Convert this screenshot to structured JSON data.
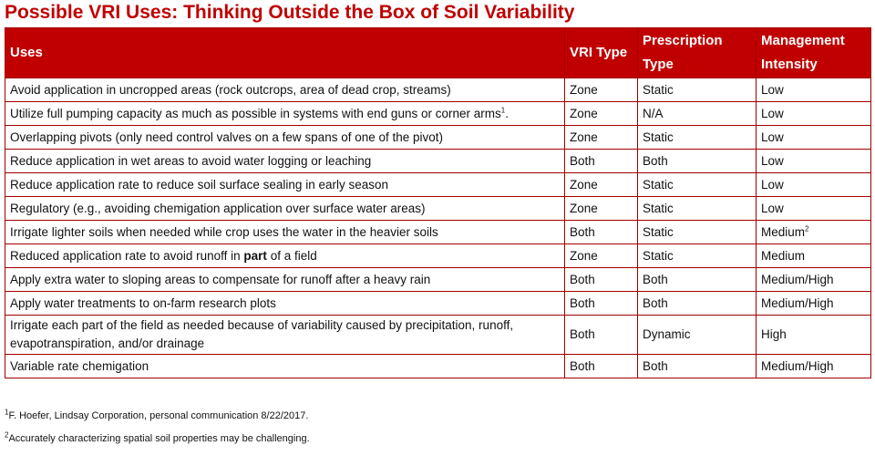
{
  "header": {
    "title": "Possible VRI Uses: Thinking Outside the Box of Soil Variability"
  },
  "table": {
    "columns": [
      "Uses",
      "VRI Type",
      "Prescription Type",
      "Management Intensity"
    ],
    "rows": [
      [
        "Avoid application in uncropped areas (rock outcrops, area of dead crop, streams)",
        "Zone",
        "Static",
        "Low"
      ],
      [
        [
          {
            "text": "Utilize full pumping capacity as much as possible in systems with end guns or corner arms"
          },
          {
            "sup": "1"
          },
          {
            "text": "."
          }
        ],
        "Zone",
        "N/A",
        "Low"
      ],
      [
        "Overlapping pivots  (only need control valves on a few spans of one of the pivot)",
        "Zone",
        "Static",
        "Low"
      ],
      [
        "Reduce application in wet areas to avoid water logging or leaching",
        "Both",
        "Both",
        "Low"
      ],
      [
        "Reduce application rate to reduce soil surface sealing in early season",
        "Zone",
        "Static",
        "Low"
      ],
      [
        "Regulatory (e.g., avoiding chemigation application over surface water areas)",
        "Zone",
        "Static",
        "Low"
      ],
      [
        "Irrigate lighter soils when needed while crop uses the water in the heavier soils",
        "Both",
        "Static",
        [
          {
            "text": "Medium"
          },
          {
            "sup": "2"
          }
        ]
      ],
      [
        [
          {
            "text": "Reduced application rate to avoid runoff in "
          },
          {
            "bold": "part"
          },
          {
            "text": " of a field"
          }
        ],
        "Zone",
        "Static",
        "Medium"
      ],
      [
        "Apply extra water to sloping areas to compensate for runoff after a heavy rain",
        "Both",
        "Both",
        "Medium/High"
      ],
      [
        "Apply water treatments to on-farm research plots",
        "Both",
        "Both",
        "Medium/High"
      ],
      [
        "Irrigate each part of the field as needed because of variability caused by precipitation, runoff, evapotranspiration, and/or drainage",
        "Both",
        "Dynamic",
        "High"
      ],
      [
        "Variable rate chemigation",
        "Both",
        "Both",
        "Medium/High"
      ]
    ]
  },
  "footnotes": [
    {
      "mark": "1",
      "text": "F. Hoefer, Lindsay Corporation, personal communication 8/22/2017."
    },
    {
      "mark": "2",
      "text": "Accurately characterizing spatial soil properties may be challenging."
    }
  ]
}
